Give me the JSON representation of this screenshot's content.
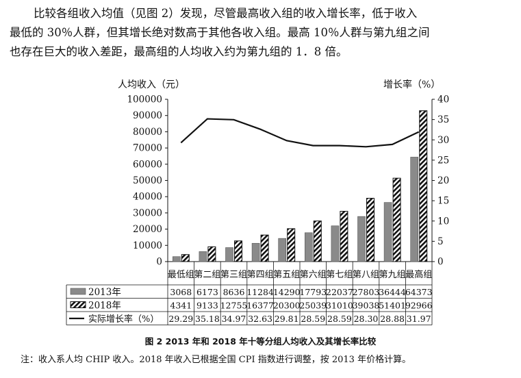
{
  "paragraph": {
    "lines": [
      "比较各组收入均值（见图 2）发现，尽管最高收入组的收入增长率，低于收入",
      "最低的 30％人群，但其增长绝对数高于其他各收入组。最高 10％人群与第九组之间",
      "也存在巨大的收入差距，最高组的人均收入约为第九组的 1．8 倍。"
    ]
  },
  "chart_data": {
    "type": "bar",
    "ylabel": "人均收入（元）",
    "y2label": "增长率（%）",
    "ylim": [
      0,
      100000
    ],
    "yticks": [
      "0",
      "10000",
      "20000",
      "30000",
      "40000",
      "50000",
      "60000",
      "70000",
      "80000",
      "90000",
      "100000"
    ],
    "y2lim": [
      0,
      40
    ],
    "y2ticks": [
      "0",
      "5",
      "10",
      "15",
      "20",
      "25",
      "30",
      "35",
      "40"
    ],
    "categories": [
      "最低组",
      "第二组",
      "第三组",
      "第四组",
      "第五组",
      "第六组",
      "第七组",
      "第八组",
      "第九组",
      "最高组"
    ],
    "series": [
      {
        "name": "2013年",
        "kind": "bar",
        "color": "#8a8a8a",
        "values": [
          3068,
          6173,
          8636,
          11284,
          14290,
          17793,
          22037,
          27803,
          36444,
          64373
        ],
        "labels": [
          "3068",
          "6173",
          "8636",
          "11284",
          "14290",
          "17793",
          "22037",
          "27803",
          "36444",
          "64373"
        ]
      },
      {
        "name": "2018年",
        "kind": "bar-hatched",
        "color": "#111111",
        "values": [
          4341,
          9133,
          12755,
          16377,
          20300,
          25039,
          31010,
          39038,
          51401,
          92966
        ],
        "labels": [
          "4341",
          "9133",
          "12755",
          "16377",
          "20300",
          "25039",
          "31010",
          "39038",
          "51401",
          "92966"
        ]
      },
      {
        "name": "实际增长率（%）",
        "kind": "line",
        "axis": "right",
        "color": "#111111",
        "values": [
          29.29,
          35.18,
          34.97,
          32.63,
          29.81,
          28.59,
          28.59,
          28.3,
          28.88,
          31.97
        ],
        "labels": [
          "29.29",
          "35.18",
          "34.97",
          "32.63",
          "29.81",
          "28.59",
          "28.59",
          "28.30",
          "28.88",
          "31.97"
        ]
      }
    ],
    "grid": false,
    "legend": "bottom-table"
  },
  "caption": "图 2   2013 年和 2018 年十等分组人均收入及其增长率比较",
  "note": "注：收入系人均 CHIP 收入。2018 年收入已根据全国 CPI 指数进行调整，按 2013 年价格计算。"
}
